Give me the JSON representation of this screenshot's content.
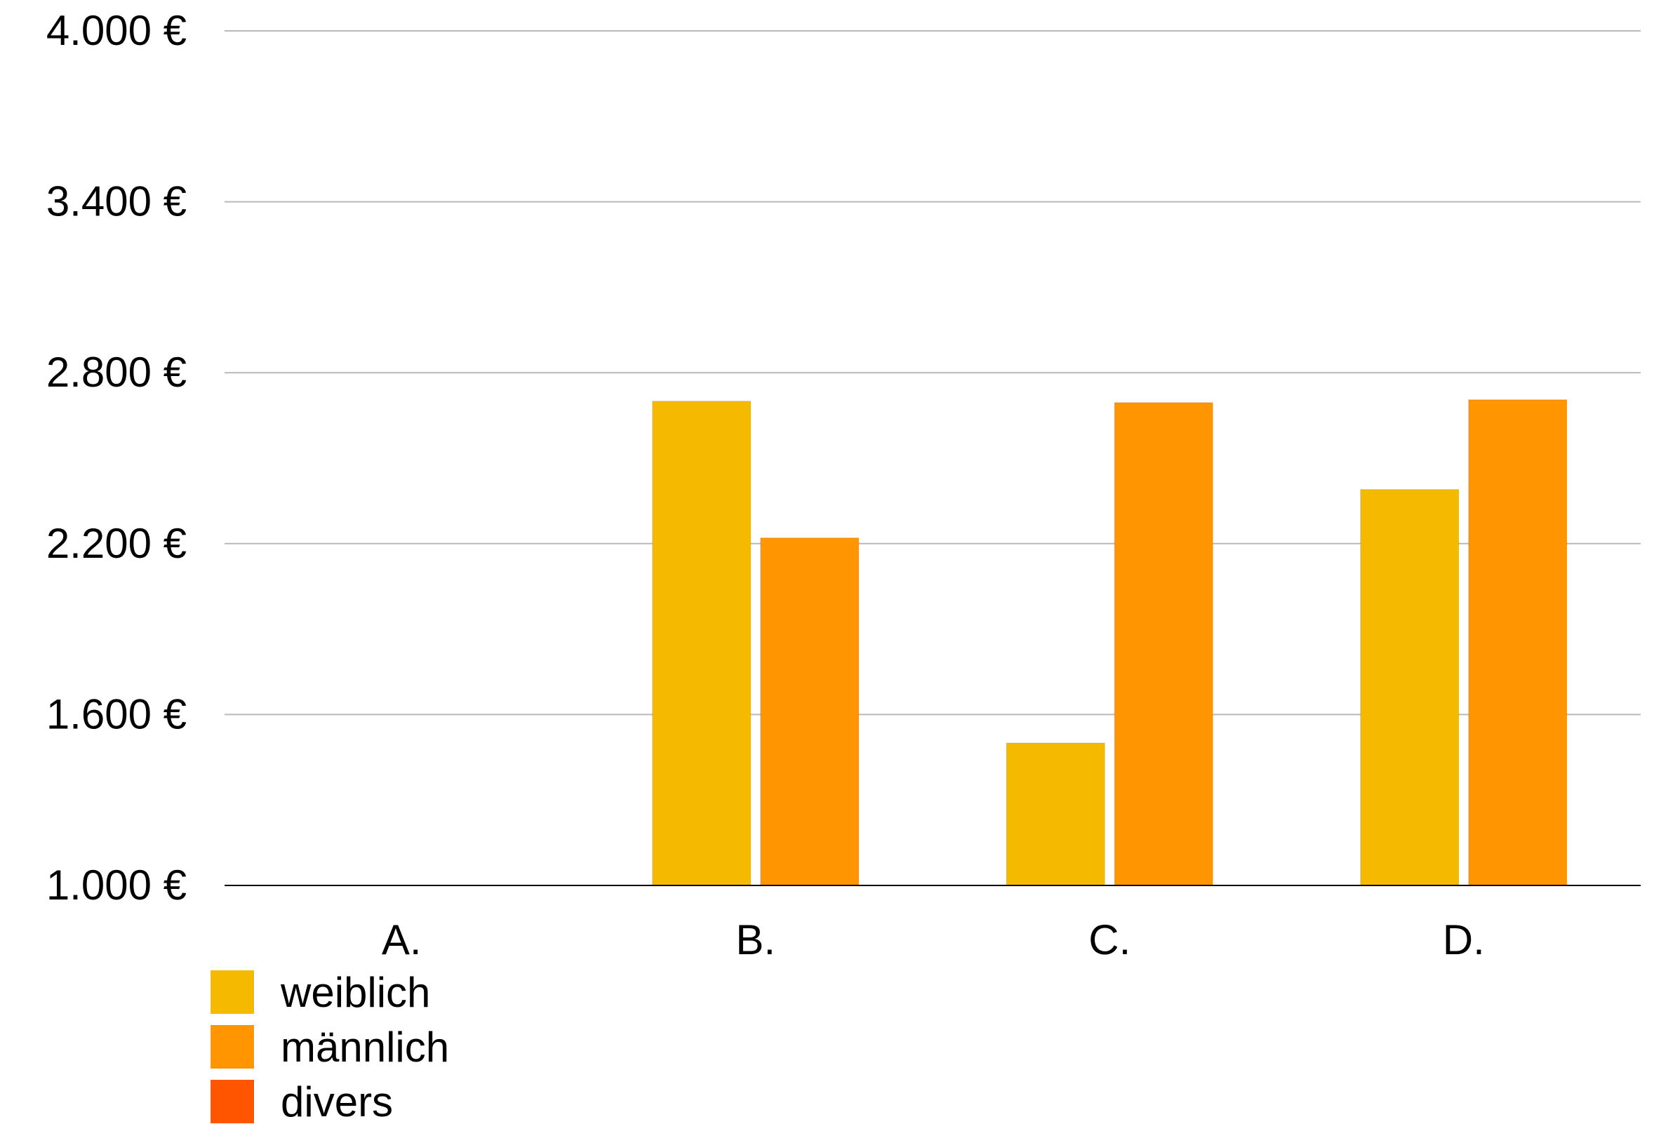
{
  "chart_data": {
    "type": "bar",
    "categories": [
      "A.",
      "B.",
      "C.",
      "D."
    ],
    "series": [
      {
        "name": "weiblich",
        "color": "#F5BA00",
        "values": [
          null,
          2700,
          1500,
          2390
        ]
      },
      {
        "name": "männlich",
        "color": "#FF9500",
        "values": [
          null,
          2220,
          2695,
          2705
        ]
      },
      {
        "name": "divers",
        "color": "#FF5500",
        "values": [
          null,
          null,
          null,
          null
        ]
      }
    ],
    "y_ticks": [
      1000,
      1600,
      2200,
      2800,
      3400,
      4000
    ],
    "y_tick_labels": [
      "1.000 €",
      "1.600 €",
      "2.200 €",
      "2.800 €",
      "3.400 €",
      "4.000 €"
    ],
    "ylim": [
      1000,
      4000
    ],
    "grid": true,
    "legend_position": "bottom-left"
  }
}
